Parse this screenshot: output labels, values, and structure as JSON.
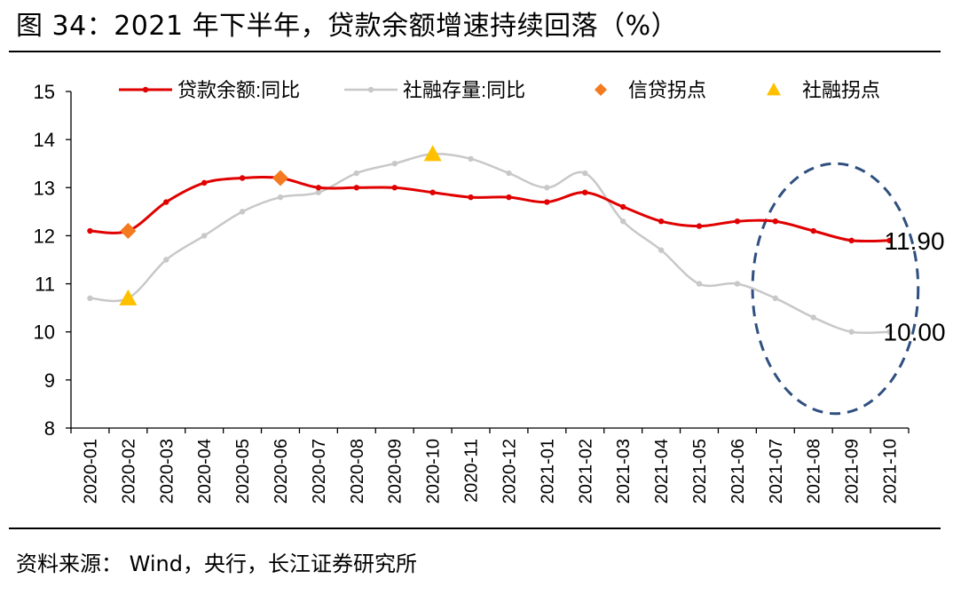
{
  "figure": {
    "title": "图 34：2021 年下半年，贷款余额增速持续回落（%）",
    "source": "资料来源：  Wind，央行，长江证券研究所"
  },
  "colors": {
    "loan": "#E00000",
    "social": "#C8C8C8",
    "credit_turn": "#F47A20",
    "social_turn": "#FFC000",
    "ellipse": "#2F4F7F"
  },
  "chart_data": {
    "type": "line",
    "categories": [
      "2020-01",
      "2020-02",
      "2020-03",
      "2020-04",
      "2020-05",
      "2020-06",
      "2020-07",
      "2020-08",
      "2020-09",
      "2020-10",
      "2020-11",
      "2020-12",
      "2021-01",
      "2021-02",
      "2021-03",
      "2021-04",
      "2021-05",
      "2021-06",
      "2021-07",
      "2021-08",
      "2021-09",
      "2021-10"
    ],
    "series": [
      {
        "name": "贷款余额:同比",
        "key": "loan",
        "values": [
          12.1,
          12.1,
          12.7,
          13.1,
          13.2,
          13.2,
          13.0,
          13.0,
          13.0,
          12.9,
          12.8,
          12.8,
          12.7,
          12.9,
          12.6,
          12.3,
          12.2,
          12.3,
          12.3,
          12.1,
          11.9,
          11.9
        ]
      },
      {
        "name": "社融存量:同比",
        "key": "social",
        "values": [
          10.7,
          10.7,
          11.5,
          12.0,
          12.5,
          12.8,
          12.9,
          13.3,
          13.5,
          13.7,
          13.6,
          13.3,
          13.0,
          13.3,
          12.3,
          11.7,
          11.0,
          11.0,
          10.7,
          10.3,
          10.0,
          10.0
        ]
      }
    ],
    "markers": [
      {
        "name": "信贷拐点",
        "shape": "diamond",
        "points": [
          {
            "x": "2020-02",
            "y": 12.1
          },
          {
            "x": "2020-06",
            "y": 13.2
          }
        ]
      },
      {
        "name": "社融拐点",
        "shape": "triangle",
        "points": [
          {
            "x": "2020-02",
            "y": 10.7
          },
          {
            "x": "2020-10",
            "y": 13.7
          }
        ]
      }
    ],
    "annotations": [
      {
        "text": "11.90",
        "x": "2021-10",
        "y": 11.9
      },
      {
        "text": "10.00",
        "x": "2021-10",
        "y": 10.0
      }
    ],
    "highlight": {
      "shape": "dashed-ellipse",
      "x_from": "2021-07",
      "x_to": "2021-10",
      "y_from": 8.3,
      "y_to": 13.5
    },
    "ylim": [
      8,
      15
    ],
    "yticks": [
      8,
      9,
      10,
      11,
      12,
      13,
      14,
      15
    ],
    "xlabel": "",
    "ylabel": "",
    "grid": false,
    "legend": "top"
  }
}
